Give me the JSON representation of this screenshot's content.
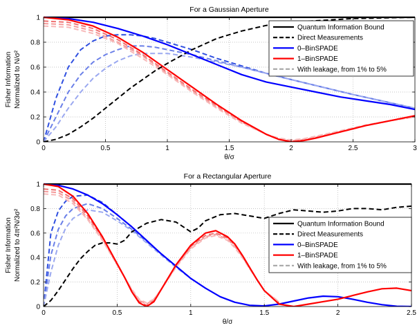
{
  "chart_data": [
    {
      "type": "line",
      "title": "For a Gaussian Aperture",
      "xlabel": "θ/σ",
      "ylabel_line1": "Fisher Information",
      "ylabel_line2": "Normalized to N/σ²",
      "xlim": [
        0,
        3
      ],
      "ylim": [
        0,
        1
      ],
      "xticks": [
        0,
        0.5,
        1,
        1.5,
        2,
        2.5,
        3
      ],
      "xtick_labels": [
        "0",
        "0.5",
        "1",
        "1.5",
        "2",
        "2.5",
        "3"
      ],
      "yticks": [
        0,
        0.2,
        0.4,
        0.6,
        0.8,
        1
      ],
      "ytick_labels": [
        "0",
        "0.2",
        "0.4",
        "0.6",
        "0.8",
        "1"
      ],
      "grid": true,
      "legend_position": "top-right",
      "legend": [
        {
          "label": "Quantum Information Bound",
          "color": "#000000",
          "dashed": false
        },
        {
          "label": "Direct Measurements",
          "color": "#000000",
          "dashed": true
        },
        {
          "label": "0–BinSPADE",
          "color": "#0000ff",
          "dashed": false
        },
        {
          "label": "1–BinSPADE",
          "color": "#ff0000",
          "dashed": false
        },
        {
          "label": "With leakage, from 1% to 5%",
          "color": "#a6a6a6",
          "dashed": true
        }
      ],
      "series": [
        {
          "name": "Quantum Information Bound",
          "color": "#000000",
          "dashed": false,
          "width": 2.2,
          "x": [
            0,
            3
          ],
          "y": [
            1,
            1
          ]
        },
        {
          "name": "Direct Measurements",
          "color": "#000000",
          "dashed": true,
          "width": 2.0,
          "x": [
            0,
            0.1,
            0.2,
            0.3,
            0.4,
            0.5,
            0.6,
            0.7,
            0.8,
            0.9,
            1.0,
            1.2,
            1.4,
            1.6,
            1.8,
            2.0,
            2.5,
            3.0
          ],
          "y": [
            0,
            0.02,
            0.06,
            0.12,
            0.19,
            0.27,
            0.35,
            0.43,
            0.5,
            0.57,
            0.63,
            0.74,
            0.83,
            0.89,
            0.935,
            0.96,
            0.99,
            1.0
          ]
        },
        {
          "name": "0–BinSPADE",
          "color": "#0000ff",
          "dashed": false,
          "width": 2.2,
          "x": [
            0,
            0.2,
            0.4,
            0.6,
            0.8,
            1.0,
            1.2,
            1.4,
            1.6,
            1.8,
            2.0,
            2.2,
            2.4,
            2.6,
            2.8,
            3.0
          ],
          "y": [
            1,
            0.99,
            0.96,
            0.91,
            0.85,
            0.78,
            0.7,
            0.62,
            0.54,
            0.48,
            0.44,
            0.4,
            0.36,
            0.33,
            0.3,
            0.26
          ]
        },
        {
          "name": "1–BinSPADE",
          "color": "#ff0000",
          "dashed": false,
          "width": 2.2,
          "x": [
            0,
            0.2,
            0.4,
            0.6,
            0.8,
            1.0,
            1.2,
            1.4,
            1.6,
            1.8,
            1.9,
            2.0,
            2.1,
            2.2,
            2.4,
            2.6,
            2.8,
            3.0
          ],
          "y": [
            1,
            0.98,
            0.93,
            0.84,
            0.72,
            0.58,
            0.44,
            0.3,
            0.17,
            0.06,
            0.02,
            0,
            0.01,
            0.03,
            0.08,
            0.13,
            0.17,
            0.21
          ]
        },
        {
          "name": "",
          "color": "#2f4fe0",
          "dashed": true,
          "width": 2.0,
          "x": [
            0,
            0.1,
            0.2,
            0.3,
            0.4,
            0.5,
            0.6,
            0.7,
            0.8,
            0.9,
            1.0,
            1.2,
            1.4,
            1.6,
            1.8,
            2.0,
            2.5,
            3.0
          ],
          "y": [
            0,
            0.35,
            0.6,
            0.74,
            0.81,
            0.85,
            0.86,
            0.86,
            0.85,
            0.83,
            0.8,
            0.74,
            0.67,
            0.61,
            0.55,
            0.5,
            0.38,
            0.27
          ]
        },
        {
          "name": "",
          "color": "#6a7fe8",
          "dashed": true,
          "width": 2.0,
          "x": [
            0,
            0.1,
            0.2,
            0.3,
            0.4,
            0.5,
            0.6,
            0.7,
            0.8,
            0.9,
            1.0,
            1.2,
            1.4,
            1.6,
            1.8,
            2.0,
            2.5,
            3.0
          ],
          "y": [
            0,
            0.2,
            0.4,
            0.54,
            0.64,
            0.7,
            0.74,
            0.77,
            0.77,
            0.76,
            0.74,
            0.7,
            0.65,
            0.6,
            0.55,
            0.5,
            0.38,
            0.27
          ]
        },
        {
          "name": "",
          "color": "#9aa8f0",
          "dashed": true,
          "width": 2.0,
          "x": [
            0,
            0.1,
            0.2,
            0.3,
            0.4,
            0.5,
            0.6,
            0.7,
            0.8,
            0.9,
            1.0,
            1.2,
            1.4,
            1.6,
            1.8,
            2.0,
            2.5,
            3.0
          ],
          "y": [
            0,
            0.12,
            0.27,
            0.4,
            0.51,
            0.59,
            0.65,
            0.69,
            0.71,
            0.71,
            0.71,
            0.68,
            0.64,
            0.6,
            0.55,
            0.5,
            0.38,
            0.27
          ]
        },
        {
          "name": "",
          "color": "#f07070",
          "dashed": true,
          "width": 2.0,
          "x": [
            0,
            0.2,
            0.4,
            0.6,
            0.8,
            1.0,
            1.2,
            1.4,
            1.6,
            1.8,
            1.9,
            2.0,
            2.1,
            2.2,
            2.4,
            2.6,
            2.8,
            3.0
          ],
          "y": [
            0.97,
            0.96,
            0.91,
            0.82,
            0.7,
            0.56,
            0.42,
            0.29,
            0.16,
            0.06,
            0.02,
            0.005,
            0.015,
            0.035,
            0.08,
            0.13,
            0.17,
            0.21
          ]
        },
        {
          "name": "",
          "color": "#f49a9a",
          "dashed": true,
          "width": 2.0,
          "x": [
            0,
            0.2,
            0.4,
            0.6,
            0.8,
            1.0,
            1.2,
            1.4,
            1.6,
            1.8,
            1.9,
            2.0,
            2.1,
            2.2,
            2.4,
            2.6,
            2.8,
            3.0
          ],
          "y": [
            0.95,
            0.94,
            0.89,
            0.8,
            0.69,
            0.55,
            0.41,
            0.28,
            0.16,
            0.06,
            0.025,
            0.01,
            0.02,
            0.04,
            0.085,
            0.13,
            0.17,
            0.2
          ]
        },
        {
          "name": "",
          "color": "#f7b9b9",
          "dashed": true,
          "width": 2.0,
          "x": [
            0,
            0.2,
            0.4,
            0.6,
            0.8,
            1.0,
            1.2,
            1.4,
            1.6,
            1.8,
            1.9,
            2.0,
            2.1,
            2.2,
            2.4,
            2.6,
            2.8,
            3.0
          ],
          "y": [
            0.93,
            0.92,
            0.87,
            0.79,
            0.67,
            0.54,
            0.4,
            0.27,
            0.15,
            0.06,
            0.03,
            0.015,
            0.025,
            0.045,
            0.09,
            0.135,
            0.17,
            0.2
          ]
        }
      ]
    },
    {
      "type": "line",
      "title": "For a Rectangular Aperture",
      "xlabel": "θ/σ",
      "ylabel_line1": "Fisher Information",
      "ylabel_line2": "Normalized to 4π²N/3σ²",
      "xlim": [
        0,
        2.5
      ],
      "ylim": [
        0,
        1
      ],
      "xticks": [
        0,
        0.5,
        1,
        1.5,
        2,
        2.5
      ],
      "xtick_labels": [
        "0",
        "0.5",
        "1",
        "1.5",
        "2",
        "2.5"
      ],
      "yticks": [
        0,
        0.2,
        0.4,
        0.6,
        0.8,
        1
      ],
      "ytick_labels": [
        "0",
        "0.2",
        "0.4",
        "0.6",
        "0.8",
        "1"
      ],
      "grid": true,
      "legend_position": "right",
      "legend": [
        {
          "label": "Quantum Information Bound",
          "color": "#000000",
          "dashed": false
        },
        {
          "label": "Direct Measurements",
          "color": "#000000",
          "dashed": true
        },
        {
          "label": "0–BinSPADE",
          "color": "#0000ff",
          "dashed": false
        },
        {
          "label": "1–BinSPADE",
          "color": "#ff0000",
          "dashed": false
        },
        {
          "label": "With leakage, from 1% to 5%",
          "color": "#a6a6a6",
          "dashed": true
        }
      ],
      "series": [
        {
          "name": "Quantum Information Bound",
          "color": "#000000",
          "dashed": false,
          "width": 2.2,
          "x": [
            0,
            2.5
          ],
          "y": [
            1,
            1
          ]
        },
        {
          "name": "Direct Measurements",
          "color": "#000000",
          "dashed": true,
          "width": 2.0,
          "x": [
            0,
            0.05,
            0.1,
            0.15,
            0.2,
            0.25,
            0.3,
            0.35,
            0.4,
            0.45,
            0.5,
            0.55,
            0.6,
            0.7,
            0.8,
            0.9,
            0.95,
            1.0,
            1.05,
            1.1,
            1.2,
            1.3,
            1.4,
            1.5,
            1.6,
            1.7,
            1.8,
            1.9,
            2.0,
            2.1,
            2.2,
            2.3,
            2.4,
            2.5
          ],
          "y": [
            0,
            0.05,
            0.13,
            0.22,
            0.31,
            0.39,
            0.45,
            0.5,
            0.52,
            0.52,
            0.51,
            0.54,
            0.61,
            0.68,
            0.71,
            0.69,
            0.65,
            0.61,
            0.64,
            0.7,
            0.75,
            0.76,
            0.74,
            0.72,
            0.76,
            0.79,
            0.78,
            0.77,
            0.78,
            0.8,
            0.8,
            0.79,
            0.81,
            0.82
          ]
        },
        {
          "name": "0–BinSPADE",
          "color": "#0000ff",
          "dashed": false,
          "width": 2.2,
          "x": [
            0,
            0.1,
            0.2,
            0.3,
            0.4,
            0.5,
            0.6,
            0.7,
            0.8,
            0.9,
            1.0,
            1.1,
            1.2,
            1.3,
            1.4,
            1.5,
            1.6,
            1.7,
            1.8,
            1.9,
            2.0,
            2.1,
            2.2,
            2.3,
            2.4,
            2.5
          ],
          "y": [
            1,
            0.99,
            0.96,
            0.91,
            0.84,
            0.75,
            0.65,
            0.54,
            0.43,
            0.33,
            0.23,
            0.15,
            0.08,
            0.035,
            0.01,
            0.005,
            0.02,
            0.045,
            0.07,
            0.085,
            0.08,
            0.06,
            0.035,
            0.015,
            0.002,
            0
          ]
        },
        {
          "name": "1–BinSPADE",
          "color": "#ff0000",
          "dashed": false,
          "width": 2.2,
          "x": [
            0,
            0.1,
            0.2,
            0.3,
            0.4,
            0.5,
            0.55,
            0.6,
            0.65,
            0.7,
            0.75,
            0.8,
            0.9,
            1.0,
            1.1,
            1.17,
            1.25,
            1.3,
            1.35,
            1.4,
            1.45,
            1.5,
            1.6,
            1.7,
            1.8,
            1.9,
            2.0,
            2.1,
            2.2,
            2.3,
            2.4,
            2.5
          ],
          "y": [
            1,
            0.98,
            0.9,
            0.76,
            0.57,
            0.35,
            0.24,
            0.12,
            0.03,
            0,
            0.04,
            0.14,
            0.34,
            0.5,
            0.6,
            0.62,
            0.57,
            0.51,
            0.42,
            0.32,
            0.22,
            0.13,
            0.02,
            0.0,
            0.02,
            0.04,
            0.06,
            0.09,
            0.12,
            0.145,
            0.15,
            0.13
          ]
        },
        {
          "name": "",
          "color": "#2f4fe0",
          "dashed": true,
          "width": 2.0,
          "x": [
            0,
            0.05,
            0.1,
            0.15,
            0.2,
            0.3,
            0.4,
            0.5,
            0.6,
            0.7,
            0.8,
            0.9,
            1.0
          ],
          "y": [
            0,
            0.6,
            0.78,
            0.86,
            0.9,
            0.91,
            0.85,
            0.75,
            0.65,
            0.54,
            0.43,
            0.33,
            0.23
          ]
        },
        {
          "name": "",
          "color": "#6a7fe8",
          "dashed": true,
          "width": 2.0,
          "x": [
            0,
            0.05,
            0.1,
            0.15,
            0.2,
            0.3,
            0.4,
            0.5,
            0.6,
            0.7,
            0.8,
            0.9,
            1.0
          ],
          "y": [
            0,
            0.42,
            0.63,
            0.74,
            0.8,
            0.84,
            0.8,
            0.72,
            0.63,
            0.53,
            0.43,
            0.33,
            0.23
          ]
        },
        {
          "name": "",
          "color": "#9aa8f0",
          "dashed": true,
          "width": 2.0,
          "x": [
            0,
            0.05,
            0.1,
            0.15,
            0.2,
            0.3,
            0.4,
            0.5,
            0.6,
            0.7,
            0.8,
            0.9,
            1.0
          ],
          "y": [
            0,
            0.28,
            0.5,
            0.64,
            0.72,
            0.79,
            0.77,
            0.7,
            0.62,
            0.52,
            0.42,
            0.32,
            0.23
          ]
        },
        {
          "name": "",
          "color": "#f07070",
          "dashed": true,
          "width": 2.0,
          "x": [
            0,
            0.1,
            0.2,
            0.3,
            0.4,
            0.5,
            0.55,
            0.6,
            0.65,
            0.7,
            0.75,
            0.8,
            0.9,
            1.0,
            1.1,
            1.17,
            1.25,
            1.3,
            1.35,
            1.4,
            1.45,
            1.5,
            1.6
          ],
          "y": [
            0.96,
            0.95,
            0.88,
            0.74,
            0.56,
            0.35,
            0.24,
            0.13,
            0.04,
            0.01,
            0.05,
            0.14,
            0.33,
            0.49,
            0.58,
            0.6,
            0.56,
            0.5,
            0.41,
            0.32,
            0.22,
            0.13,
            0.03
          ]
        },
        {
          "name": "",
          "color": "#f49a9a",
          "dashed": true,
          "width": 2.0,
          "x": [
            0,
            0.1,
            0.2,
            0.3,
            0.4,
            0.5,
            0.55,
            0.6,
            0.65,
            0.7,
            0.75,
            0.8,
            0.9,
            1.0,
            1.1,
            1.17,
            1.25,
            1.3,
            1.35,
            1.4,
            1.45,
            1.5,
            1.6
          ],
          "y": [
            0.94,
            0.93,
            0.86,
            0.72,
            0.55,
            0.34,
            0.24,
            0.13,
            0.05,
            0.02,
            0.06,
            0.14,
            0.33,
            0.48,
            0.57,
            0.59,
            0.55,
            0.49,
            0.41,
            0.31,
            0.22,
            0.13,
            0.035
          ]
        },
        {
          "name": "",
          "color": "#f7b9b9",
          "dashed": true,
          "width": 2.0,
          "x": [
            0,
            0.1,
            0.2,
            0.3,
            0.4,
            0.5,
            0.55,
            0.6,
            0.65,
            0.7,
            0.75,
            0.8,
            0.9,
            1.0,
            1.1,
            1.17,
            1.25,
            1.3,
            1.35,
            1.4,
            1.45,
            1.5,
            1.6
          ],
          "y": [
            0.92,
            0.91,
            0.84,
            0.71,
            0.54,
            0.34,
            0.24,
            0.14,
            0.06,
            0.03,
            0.06,
            0.14,
            0.32,
            0.47,
            0.56,
            0.58,
            0.54,
            0.48,
            0.4,
            0.31,
            0.22,
            0.13,
            0.04
          ]
        }
      ]
    }
  ]
}
